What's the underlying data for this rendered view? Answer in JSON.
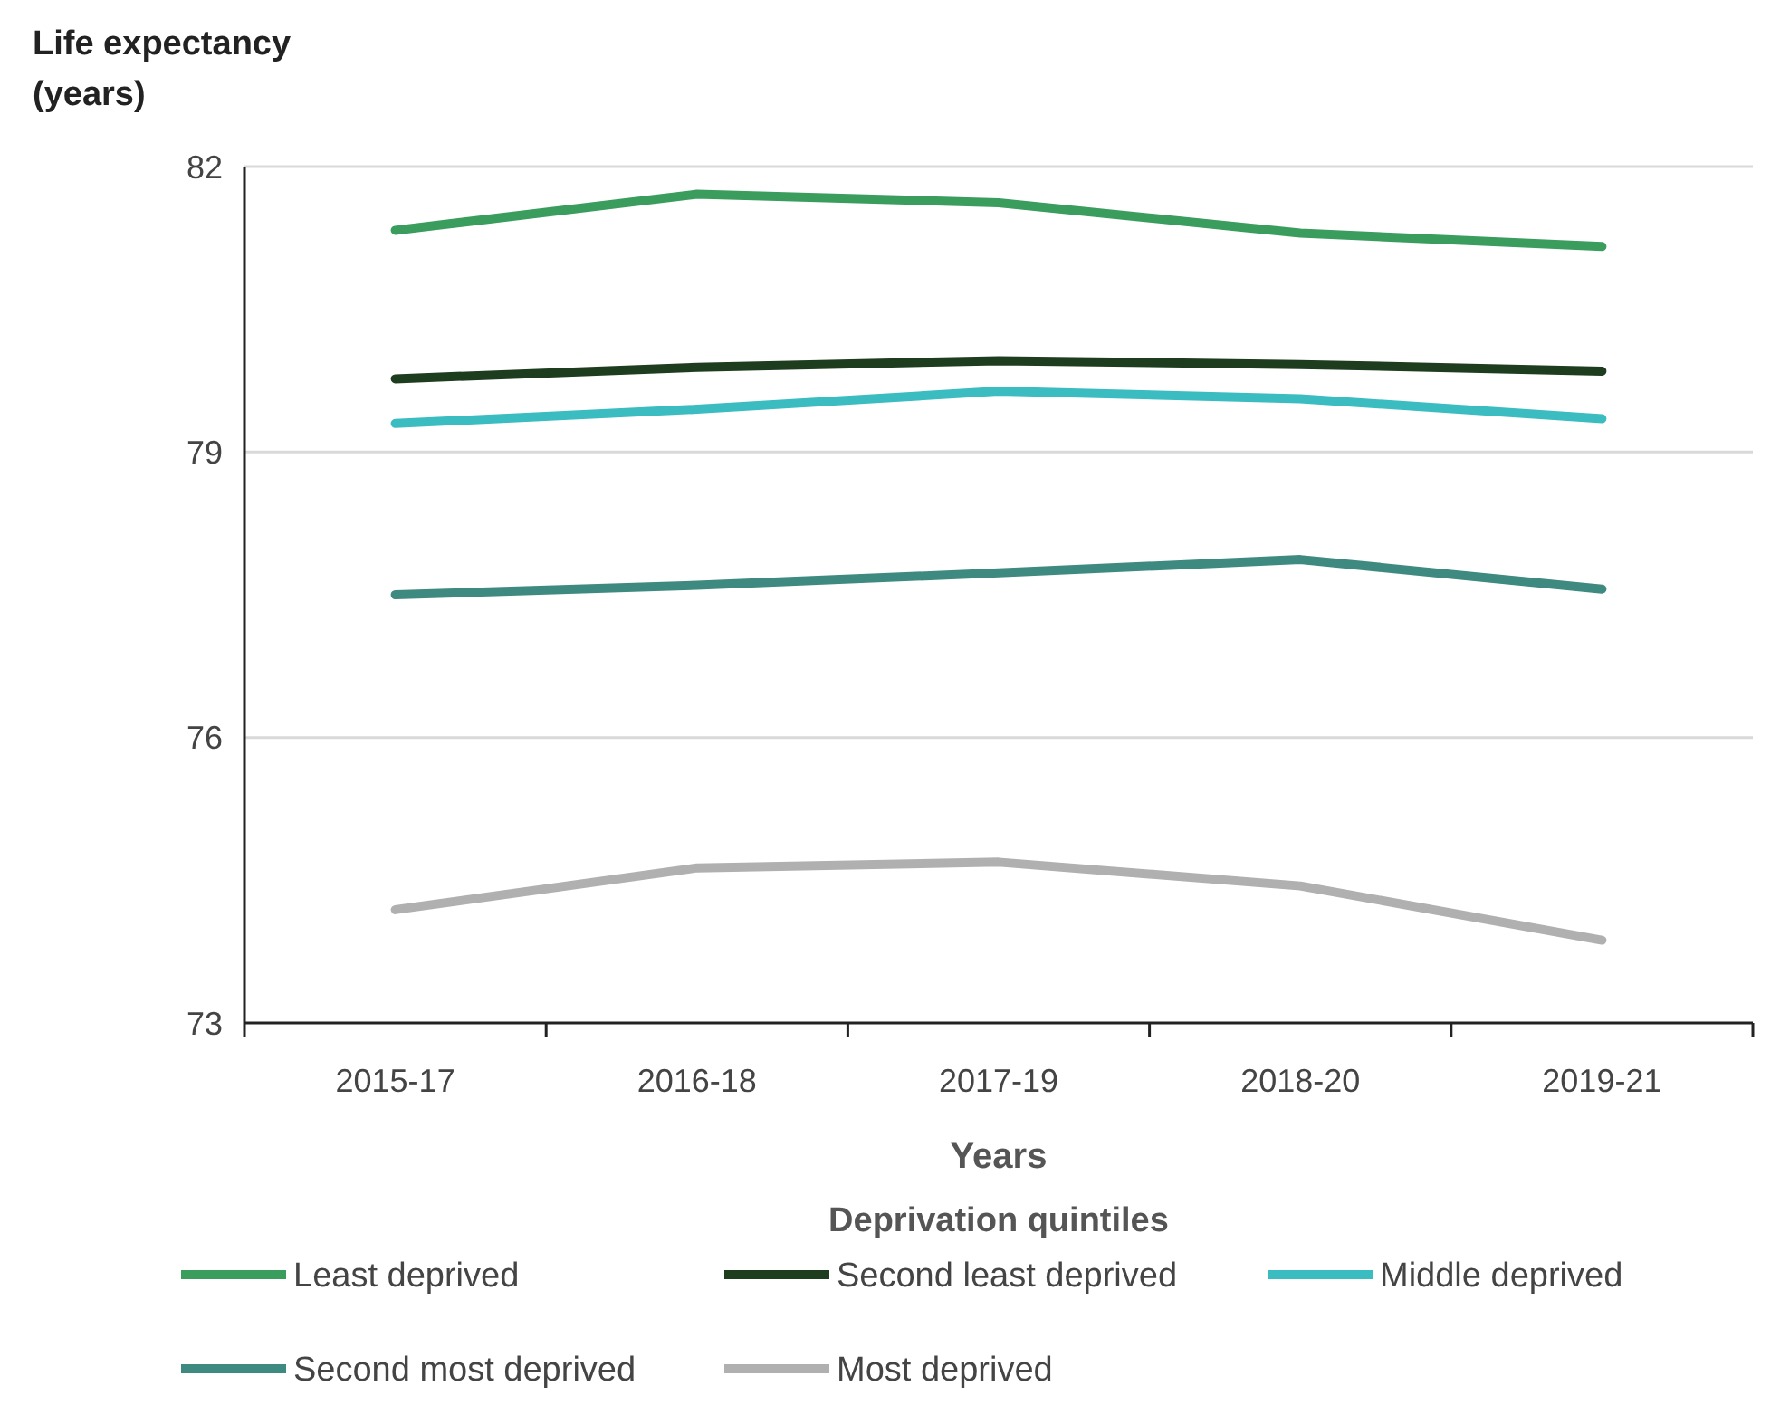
{
  "chart_data": {
    "type": "line",
    "xlabel": "Years",
    "ylabel": "Life expectancy\n(years)",
    "legend_title": "Deprivation quintiles",
    "legend": "bottom",
    "grid": "y",
    "marker": "none",
    "line_style": "solid",
    "categories": [
      "2015-17",
      "2016-18",
      "2017-19",
      "2018-20",
      "2019-21"
    ],
    "ylim": [
      73,
      82
    ],
    "yticks": [
      73,
      76,
      79,
      82
    ],
    "series": [
      {
        "name": "Least deprived",
        "color": "#3a9d5d",
        "values": [
          81.33,
          81.71,
          81.62,
          81.3,
          81.16
        ]
      },
      {
        "name": "Second least deprived",
        "color": "#1e3d1e",
        "values": [
          79.77,
          79.89,
          79.96,
          79.92,
          79.85
        ]
      },
      {
        "name": "Middle deprived",
        "color": "#3bbcc0",
        "values": [
          79.3,
          79.45,
          79.64,
          79.56,
          79.35
        ]
      },
      {
        "name": "Second most deprived",
        "color": "#3f8a80",
        "values": [
          77.5,
          77.6,
          77.73,
          77.87,
          77.56
        ]
      },
      {
        "name": "Most deprived",
        "color": "#b0b0b0",
        "values": [
          74.19,
          74.63,
          74.69,
          74.44,
          73.87
        ]
      }
    ]
  }
}
